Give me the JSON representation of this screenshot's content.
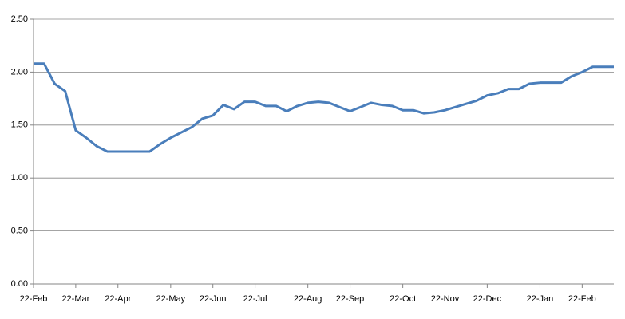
{
  "chart_data": {
    "type": "line",
    "categories": [
      "22-Feb",
      null,
      null,
      null,
      "22-Mar",
      null,
      null,
      null,
      "22-Apr",
      null,
      null,
      null,
      null,
      "22-May",
      null,
      null,
      null,
      "22-Jun",
      null,
      null,
      null,
      "22-Jul",
      null,
      null,
      null,
      null,
      "22-Aug",
      null,
      null,
      null,
      "22-Sep",
      null,
      null,
      null,
      null,
      "22-Oct",
      null,
      null,
      null,
      "22-Nov",
      null,
      null,
      null,
      "22-Dec",
      null,
      null,
      null,
      null,
      "22-Jan",
      null,
      null,
      null,
      "22-Feb",
      null,
      null,
      null
    ],
    "series": [
      {
        "color": "#4a7ebb",
        "values": [
          2.08,
          2.08,
          1.89,
          1.82,
          1.45,
          1.38,
          1.3,
          1.25,
          1.25,
          1.25,
          1.25,
          1.25,
          1.32,
          1.38,
          1.43,
          1.48,
          1.56,
          1.59,
          1.69,
          1.65,
          1.72,
          1.72,
          1.68,
          1.68,
          1.63,
          1.68,
          1.71,
          1.72,
          1.71,
          1.67,
          1.63,
          1.67,
          1.71,
          1.69,
          1.68,
          1.64,
          1.64,
          1.61,
          1.62,
          1.64,
          1.67,
          1.7,
          1.73,
          1.78,
          1.8,
          1.84,
          1.84,
          1.89,
          1.9,
          1.9,
          1.9,
          1.96,
          2.0,
          2.05,
          2.05,
          2.05
        ]
      }
    ],
    "ylim": [
      0,
      2.5
    ],
    "yticks": [
      {
        "value": 0,
        "label": "0.00"
      },
      {
        "value": 0.5,
        "label": "0.50"
      },
      {
        "value": 1,
        "label": "1.00"
      },
      {
        "value": 1.5,
        "label": "1.50"
      },
      {
        "value": 2,
        "label": "2.00"
      },
      {
        "value": 2.5,
        "label": "2.50"
      }
    ],
    "grid": true
  }
}
